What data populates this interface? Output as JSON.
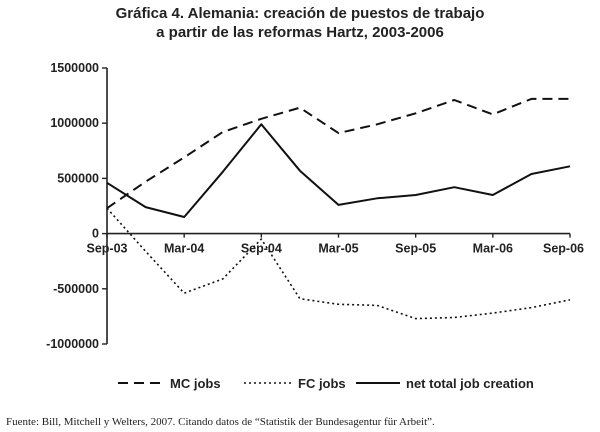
{
  "chart_data": {
    "type": "line",
    "title_lines": [
      "Gráfica 4. Alemania: creación de puestos de trabajo",
      "a partir de las reformas Hartz, 2003-2006"
    ],
    "x": [
      "Sep-03",
      "Dec-03",
      "Mar-04",
      "Jun-04",
      "Sep-04",
      "Dec-04",
      "Mar-05",
      "Jun-05",
      "Sep-05",
      "Dec-05",
      "Mar-06",
      "Jun-06",
      "Sep-06"
    ],
    "x_tick_labels": [
      "Sep-03",
      "Mar-04",
      "Sep-04",
      "Mar-05",
      "Sep-05",
      "Mar-06",
      "Sep-06"
    ],
    "x_tick_indices": [
      0,
      2,
      4,
      6,
      8,
      10,
      12
    ],
    "y_ticks": [
      -1000000,
      -500000,
      0,
      500000,
      1000000,
      1500000
    ],
    "y_tick_labels": [
      "-1000000",
      "-500000",
      "0",
      "500000",
      "1000000",
      "1500000"
    ],
    "ylim": [
      -1000000,
      1500000
    ],
    "grid": false,
    "legend_position": "bottom",
    "series": [
      {
        "name": "MC jobs",
        "dash": "dashed",
        "values": [
          230000,
          470000,
          690000,
          920000,
          1040000,
          1140000,
          910000,
          990000,
          1090000,
          1210000,
          1080000,
          1220000,
          1220000
        ]
      },
      {
        "name": "FC jobs",
        "dash": "dotted",
        "values": [
          230000,
          -160000,
          -540000,
          -410000,
          -50000,
          -590000,
          -640000,
          -650000,
          -770000,
          -760000,
          -720000,
          -670000,
          -600000
        ]
      },
      {
        "name": "net total job creation",
        "dash": "solid",
        "values": [
          460000,
          240000,
          150000,
          560000,
          990000,
          570000,
          260000,
          320000,
          350000,
          420000,
          350000,
          540000,
          610000
        ]
      }
    ]
  },
  "source_note": "Fuente: Bill, Mitchell y Welters, 2007. Citando datos de “Statistik der Bundesagentur für Arbeit”."
}
